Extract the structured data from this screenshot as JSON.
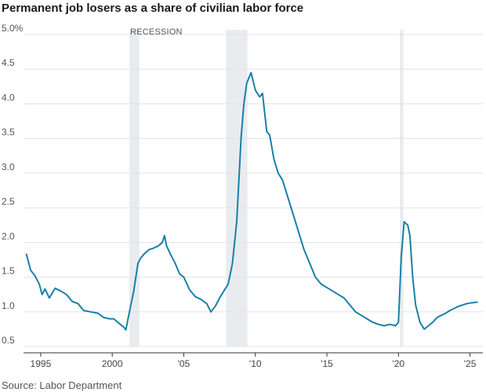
{
  "chart_data": {
    "type": "line",
    "title": "Permanent job losers as a share of civilian labor force",
    "source": "Source: Labor Department",
    "annotation": "RECESSION",
    "ylim": [
      0.5,
      5.0
    ],
    "yticks": [
      0.5,
      1.0,
      1.5,
      2.0,
      2.5,
      3.0,
      3.5,
      4.0,
      4.5,
      5.0
    ],
    "ytick_labels": [
      "0.5",
      "1.0",
      "1.5",
      "2.0",
      "2.5",
      "3.0",
      "3.5",
      "4.0",
      "4.5",
      "5.0%"
    ],
    "xlim": [
      1993.8,
      2025.9
    ],
    "xticks": [
      1995,
      2000,
      2005,
      2010,
      2015,
      2020,
      2025
    ],
    "xtick_labels": [
      "1995",
      "2000",
      "'05",
      "'10",
      "'15",
      "'20",
      "'25"
    ],
    "grid": "horizontal",
    "colors": {
      "line": "#1a7fab",
      "recession": "#e8ecef",
      "grid": "#e3e3e3",
      "axis": "#333333"
    },
    "recessions": [
      [
        2001.2,
        2001.9
      ],
      [
        2007.95,
        2009.45
      ],
      [
        2020.1,
        2020.35
      ]
    ],
    "series": [
      {
        "x": [
          1994.0,
          1994.3,
          1994.6,
          1994.9,
          1995.1,
          1995.3,
          1995.6,
          1996.0,
          1996.4,
          1996.8,
          1997.2,
          1997.6,
          1998.0,
          1998.5,
          1999.0,
          1999.4,
          1999.8,
          2000.1,
          2000.5,
          2000.8,
          2000.95,
          2001.2,
          2001.5,
          2001.8,
          2002.0,
          2002.3,
          2002.6,
          2002.9,
          2003.2,
          2003.5,
          2003.65,
          2003.8,
          2004.1,
          2004.4,
          2004.7,
          2005.0,
          2005.4,
          2005.8,
          2006.2,
          2006.6,
          2006.9,
          2007.2,
          2007.5,
          2007.8,
          2008.1,
          2008.4,
          2008.7,
          2009.0,
          2009.2,
          2009.4,
          2009.7,
          2010.0,
          2010.3,
          2010.5,
          2010.8,
          2011.0,
          2011.3,
          2011.6,
          2011.9,
          2012.2,
          2012.5,
          2012.8,
          2013.1,
          2013.4,
          2013.8,
          2014.2,
          2014.6,
          2015.0,
          2015.4,
          2015.8,
          2016.2,
          2016.6,
          2017.0,
          2017.4,
          2017.8,
          2018.2,
          2018.6,
          2019.0,
          2019.4,
          2019.8,
          2020.0,
          2020.2,
          2020.4,
          2020.5,
          2020.65,
          2020.8,
          2021.0,
          2021.2,
          2021.5,
          2021.8,
          2022.1,
          2022.4,
          2022.7,
          2023.0,
          2023.3,
          2023.6,
          2023.9,
          2024.2,
          2024.5,
          2024.8,
          2025.1,
          2025.5
        ],
        "y": [
          1.83,
          1.6,
          1.52,
          1.4,
          1.25,
          1.33,
          1.2,
          1.34,
          1.3,
          1.25,
          1.15,
          1.12,
          1.02,
          1.0,
          0.98,
          0.92,
          0.9,
          0.9,
          0.83,
          0.78,
          0.74,
          1.0,
          1.3,
          1.7,
          1.78,
          1.85,
          1.9,
          1.92,
          1.95,
          2.0,
          2.1,
          1.95,
          1.82,
          1.7,
          1.55,
          1.5,
          1.32,
          1.22,
          1.18,
          1.12,
          1.0,
          1.08,
          1.2,
          1.3,
          1.4,
          1.7,
          2.3,
          3.5,
          4.0,
          4.3,
          4.45,
          4.2,
          4.1,
          4.15,
          3.6,
          3.55,
          3.2,
          3.0,
          2.9,
          2.7,
          2.5,
          2.3,
          2.1,
          1.9,
          1.7,
          1.5,
          1.4,
          1.35,
          1.3,
          1.25,
          1.2,
          1.1,
          1.0,
          0.95,
          0.9,
          0.85,
          0.82,
          0.8,
          0.82,
          0.8,
          0.85,
          1.8,
          2.3,
          2.28,
          2.25,
          2.1,
          1.5,
          1.1,
          0.85,
          0.75,
          0.8,
          0.85,
          0.92,
          0.95,
          0.98,
          1.02,
          1.05,
          1.08,
          1.1,
          1.12,
          1.13,
          1.14
        ]
      }
    ]
  }
}
